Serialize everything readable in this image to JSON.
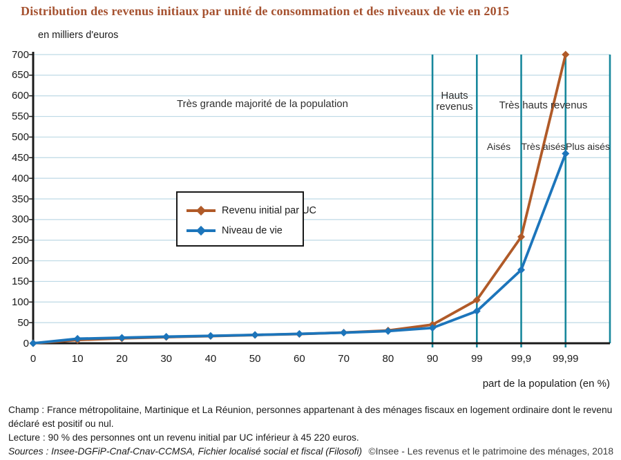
{
  "title": "Distribution des revenus initiaux par unité de consommation et des niveaux de vie en 2015",
  "unit_label": "en milliers d'euros",
  "xaxis_label": "part de la population (en %)",
  "annotations": {
    "majority": "Très grande majorité de la population",
    "hauts_revenus": "Hauts revenus",
    "tres_hauts_revenus": "Très hauts revenus",
    "aises": "Aisés",
    "tres_aises": "Très aisés",
    "plus_aises": "Plus aisés"
  },
  "legend": {
    "items": [
      {
        "label": "Revenu initial par UC",
        "color": "#b05a28"
      },
      {
        "label": "Niveau de vie",
        "color": "#1c75bb"
      }
    ]
  },
  "footer": {
    "champ": "Champ : France métropolitaine, Martinique et La Réunion, personnes appartenant à des ménages fiscaux en logement ordinaire dont le revenu déclaré est positif ou nul.",
    "lecture": "Lecture : 90 % des personnes ont un revenu initial par UC inférieur à 45 220 euros.",
    "sources": "Sources :  Insee-DGFiP-Cnaf-Cnav-CCMSA, Fichier localisé social et fiscal (Filosofi) 2015.",
    "copyright": "©Insee - Les revenus et le patrimoine des ménages, 2018"
  },
  "chart_data": {
    "type": "line",
    "title": "Distribution des revenus initiaux par unité de consommation et des niveaux de vie en 2015",
    "xlabel": "part de la population (en %)",
    "ylabel": "en milliers d'euros",
    "categories": [
      "0",
      "10",
      "20",
      "30",
      "40",
      "50",
      "60",
      "70",
      "80",
      "90",
      "99",
      "99,9",
      "99,99"
    ],
    "series": [
      {
        "name": "Revenu initial par UC",
        "color": "#b05a28",
        "values": [
          0,
          8,
          12,
          15,
          17.5,
          20,
          22.5,
          26,
          31,
          45.2,
          105,
          258,
          700
        ]
      },
      {
        "name": "Niveau de vie",
        "color": "#1c75bb",
        "values": [
          0,
          11,
          13.5,
          16,
          18,
          20.3,
          22.8,
          25.7,
          29.6,
          37.3,
          78,
          178,
          460
        ]
      }
    ],
    "ylim": [
      0,
      700
    ],
    "ytick_step": 50,
    "grid": true,
    "vertical_guides_at": [
      "90",
      "99",
      "99,9",
      "99,99"
    ],
    "legend_position": "inside-center-left",
    "colors": {
      "guide_lines": "#17879c",
      "grid_lines": "#bdd9e5",
      "axis": "#1a1a1a",
      "title": "#a5512f"
    }
  }
}
